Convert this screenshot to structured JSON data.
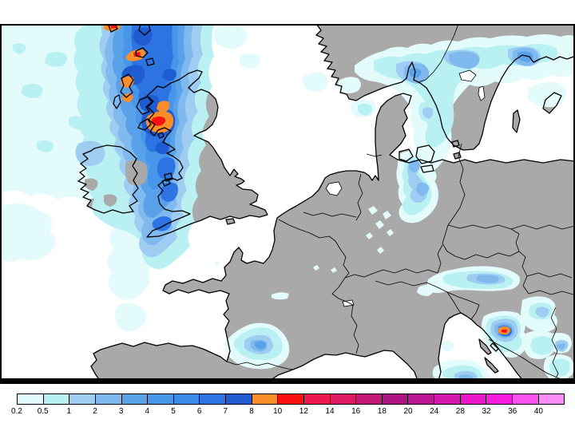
{
  "map": {
    "sea_color": "#FFFFFF",
    "land_color": "#A9A9A9",
    "coast_color": "#000000",
    "frame_color": "#000000"
  },
  "palette": {
    "lvl_02": "#E4FBFB",
    "lvl_05": "#B9F1F3",
    "lvl_1": "#9FCDF2",
    "lvl_2": "#7FB9EE",
    "lvl_3": "#59A2EA",
    "lvl_4": "#4796E9",
    "lvl_5": "#3C8AE8",
    "lvl_6": "#2D73E2",
    "lvl_7": "#1F5BD1",
    "orange": "#F98D27",
    "red": "#FB0F0F",
    "land": "#A9A9A9",
    "sea": "#FFFFFF"
  },
  "legend": {
    "tick_labels": [
      "0.2",
      "0.5",
      "1",
      "2",
      "3",
      "4",
      "5",
      "6",
      "7",
      "8",
      "10",
      "12",
      "14",
      "16",
      "18",
      "20",
      "24",
      "28",
      "32",
      "36",
      "40"
    ],
    "cell_colors": [
      "#E4FBFB",
      "#B9F1F3",
      "#9FCDF2",
      "#7FB9EE",
      "#59A2EA",
      "#4796E9",
      "#3C8AE8",
      "#2D73E2",
      "#1F5BD1",
      "#F98D27",
      "#FB0F0F",
      "#EE174E",
      "#DE1863",
      "#C41877",
      "#AC1582",
      "#BC1692",
      "#D317AC",
      "#EC16C9",
      "#F81BE0",
      "#FB53EF",
      "#FD8BF7"
    ]
  }
}
